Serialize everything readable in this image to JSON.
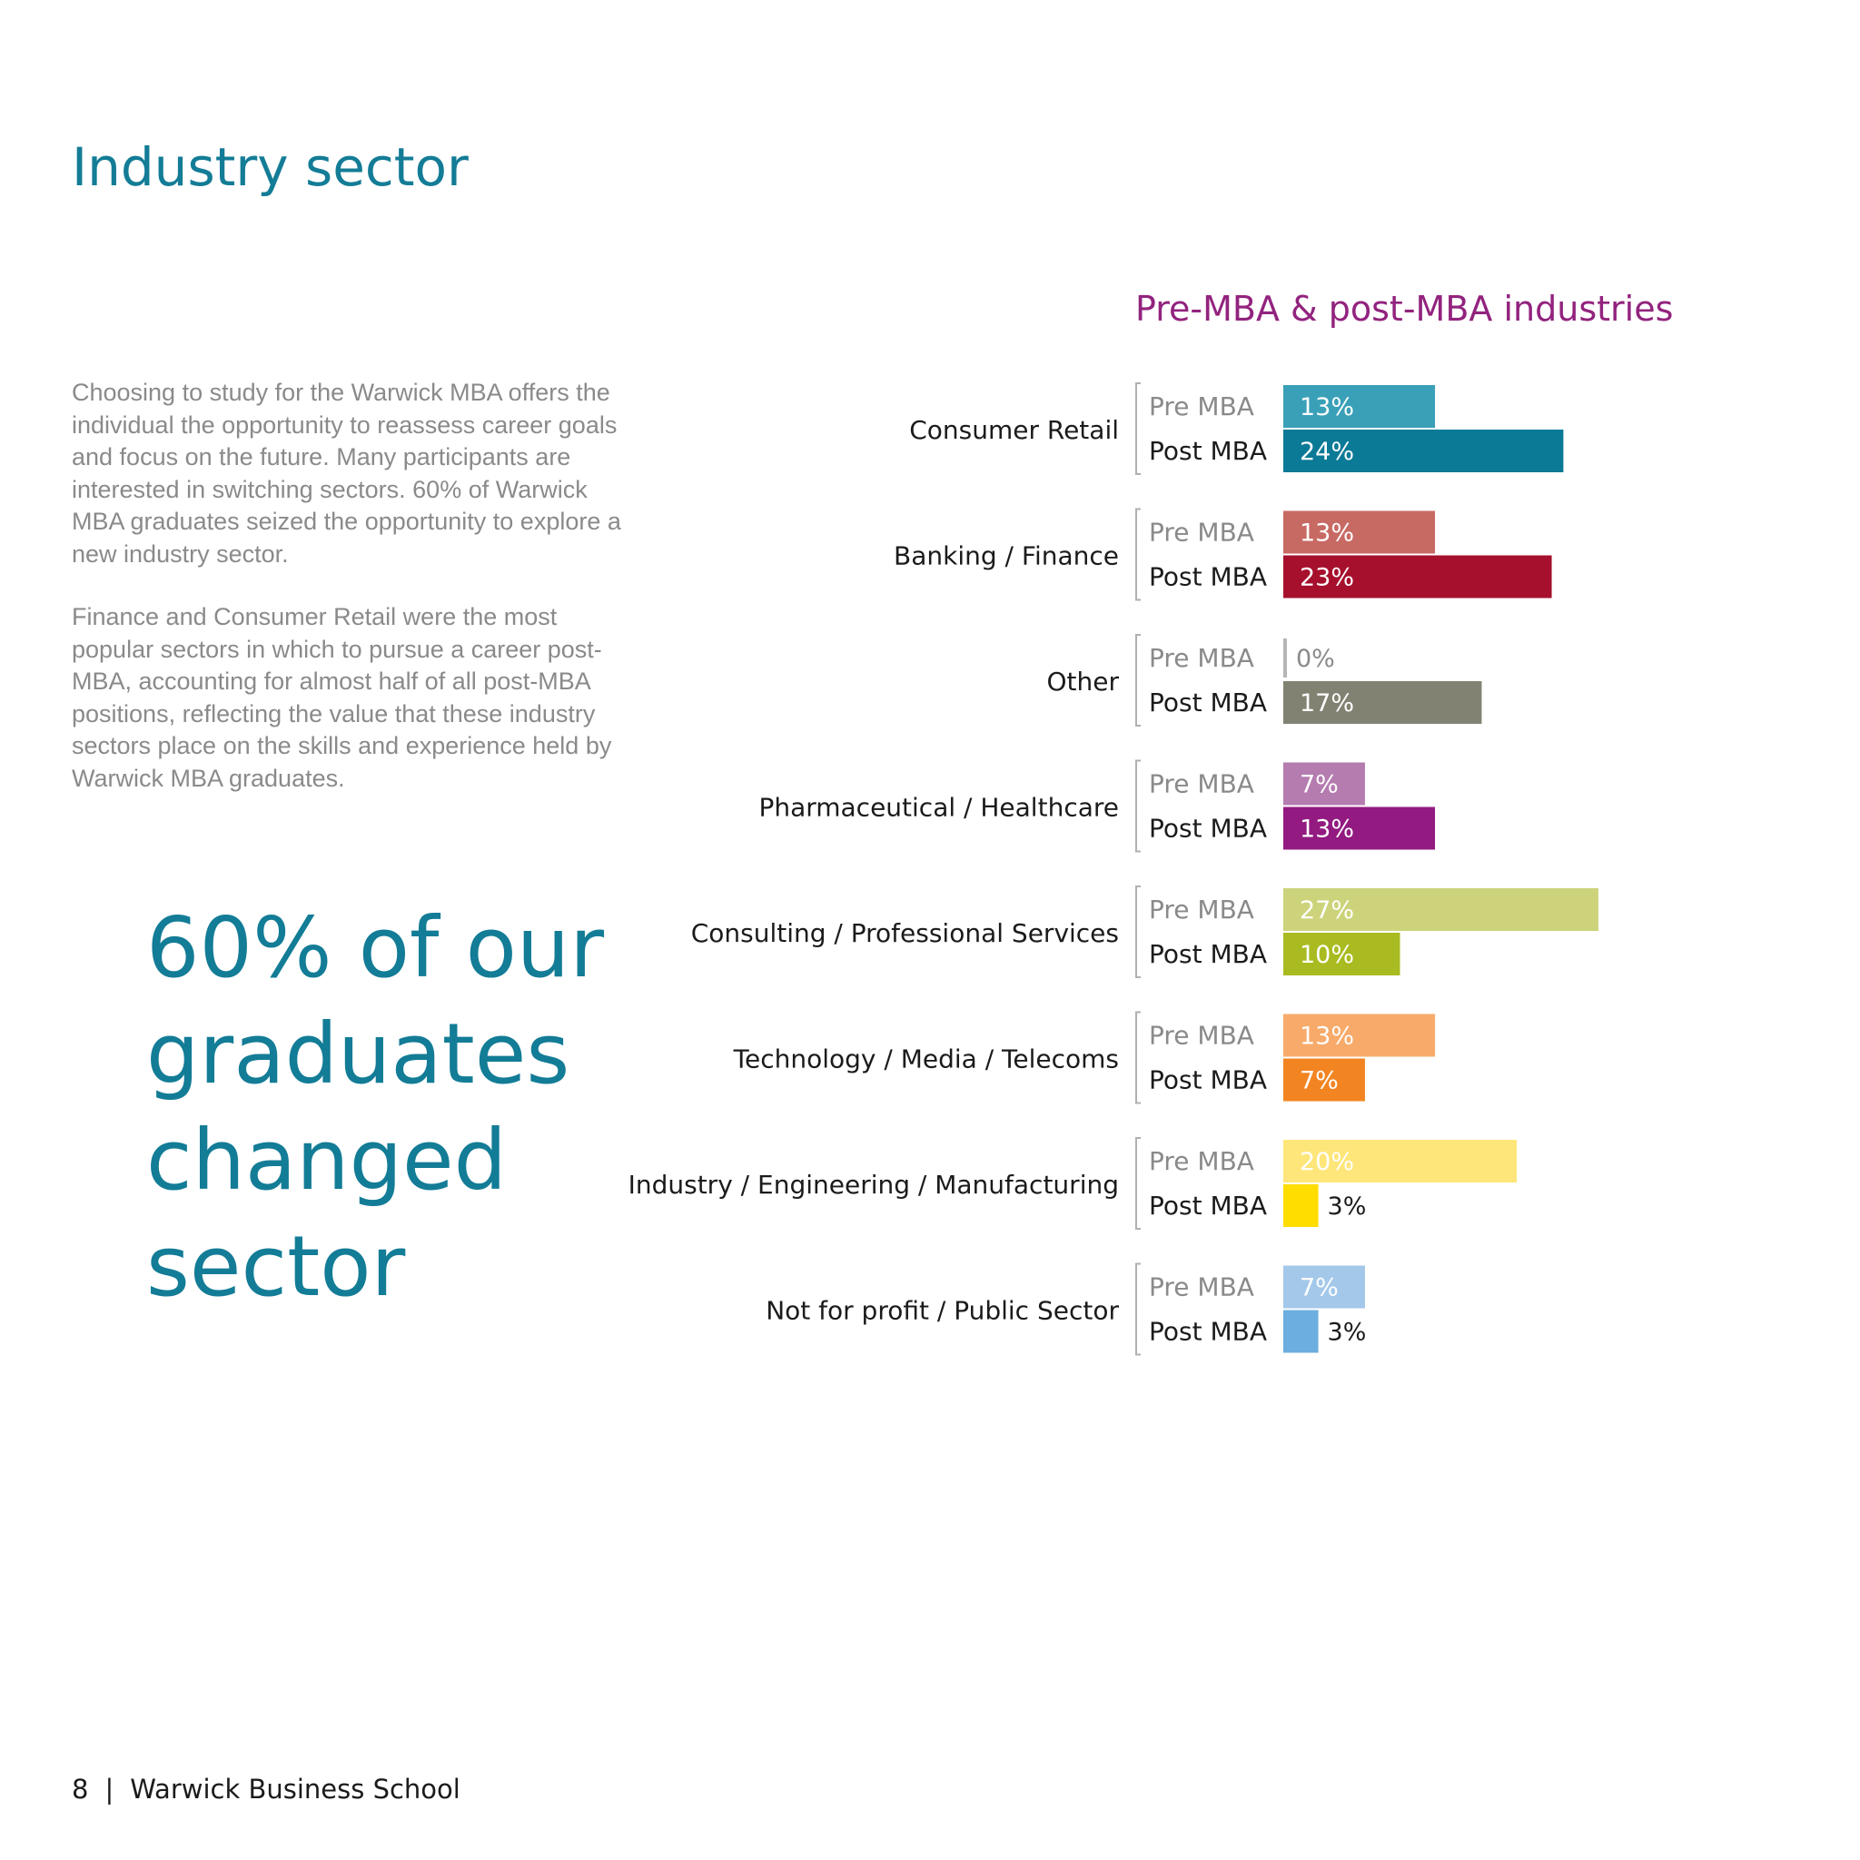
{
  "page": {
    "title": "Industry sector",
    "intro": [
      "Choosing to study for the Warwick MBA offers the individual the opportunity to reassess career goals and focus on the future. Many participants are interested in switching sectors. 60% of Warwick MBA graduates seized the opportunity to explore a new industry sector.",
      "Finance and Consumer Retail were the most popular sectors in which to pursue a career post-MBA, accounting for almost half of all post-MBA positions, reflecting the value that these industry sectors place on the skills and experience held by Warwick MBA graduates."
    ],
    "quote": [
      "60% of our",
      "graduates",
      "changed",
      "sector"
    ],
    "footer": {
      "page_number": "8",
      "separator": "|",
      "publisher": "Warwick Business School"
    }
  },
  "chart_data": {
    "type": "bar",
    "orientation": "horizontal",
    "title": "Pre-MBA & post-MBA industries",
    "series_labels": [
      "Pre MBA",
      "Post MBA"
    ],
    "categories": [
      "Consumer Retail",
      "Banking / Finance",
      "Other",
      "Pharmaceutical / Healthcare",
      "Consulting / Professional Services",
      "Technology / Media / Telecoms",
      "Industry / Engineering / Manufacturing",
      "Not for profit / Public Sector"
    ],
    "series": [
      {
        "values": [
          13,
          13,
          0,
          7,
          27,
          13,
          20,
          7
        ]
      },
      {
        "values": [
          24,
          23,
          17,
          13,
          10,
          7,
          3,
          3
        ]
      }
    ],
    "value_labels": {
      "pre": [
        "13%",
        "13%",
        "0%",
        "7%",
        "27%",
        "13%",
        "20%",
        "7%"
      ],
      "post": [
        "24%",
        "23%",
        "17%",
        "13%",
        "10%",
        "7%",
        "3%",
        "3%"
      ]
    },
    "colors": {
      "pre": [
        "#3aa0b8",
        "#c86a64",
        "#b5b5b5",
        "#b57cb0",
        "#cdd37a",
        "#f7aa6a",
        "#ffe67a",
        "#a3c8ea"
      ],
      "post": [
        "#0b7a96",
        "#a6102d",
        "#828273",
        "#921a80",
        "#a9bb20",
        "#f28522",
        "#ffdd00",
        "#6baedf"
      ]
    },
    "xlim": [
      0,
      100
    ],
    "grid": false,
    "legend": "none"
  }
}
